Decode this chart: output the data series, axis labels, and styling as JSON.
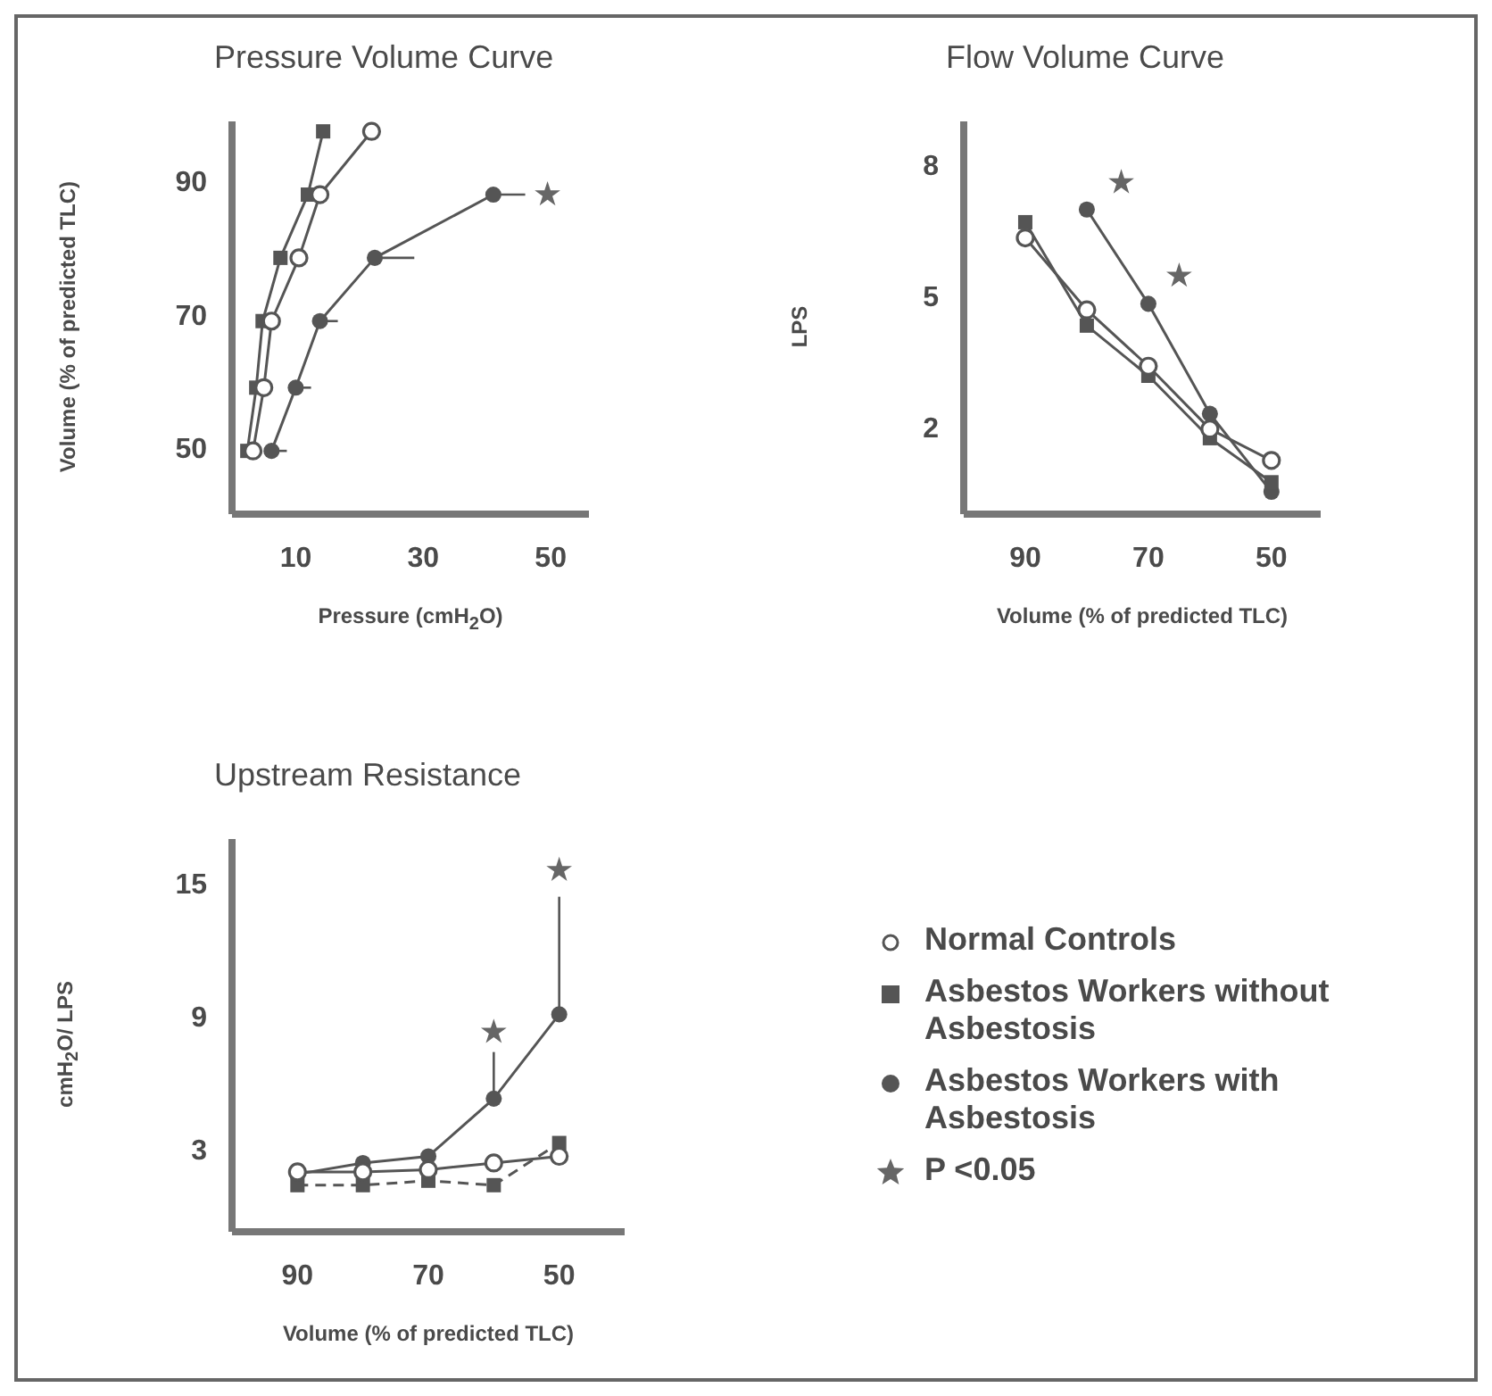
{
  "chart_data": [
    {
      "type": "line",
      "title": "Pressure Volume Curve",
      "xlabel": "Pressure (cmH$_{2}$O)",
      "ylabel": "Volume (% of predicted TLC)",
      "xlim": [
        0,
        56
      ],
      "ylim": [
        40,
        99
      ],
      "xticks": [
        10,
        30,
        50
      ],
      "yticks": [
        50,
        70,
        90
      ],
      "legend": false,
      "series": [
        {
          "type": "line",
          "color": "#555555",
          "marker": "circle",
          "line_style": "solid",
          "x": [
            21.9,
            13.8,
            10.5,
            6.2,
            5,
            3.3
          ],
          "values": [
            97.5,
            88,
            78.5,
            69,
            59,
            49.5
          ]
        },
        {
          "type": "line",
          "color": "#555555",
          "marker": "square",
          "line_style": "solid",
          "x": [
            14.3,
            11.9,
            7.6,
            4.8,
            3.8,
            2.4
          ],
          "values": [
            97.5,
            88,
            78.5,
            69,
            59,
            49.5
          ]
        },
        {
          "type": "line",
          "color": "#555555",
          "marker": "circle",
          "line_style": "solid",
          "x": [
            41,
            22.4,
            13.8,
            10,
            6.2
          ],
          "values": [
            88,
            78.5,
            69,
            59,
            49.5
          ],
          "xerrors": [
            [
              41,
              46
            ],
            [
              22.4,
              28.6
            ],
            [
              13.8,
              16.6
            ],
            [
              10,
              12.4
            ],
            [
              6.2,
              8.6
            ]
          ]
        },
        {
          "type": "scatter",
          "color": "#666666",
          "marker": "star",
          "x": [
            49.5
          ],
          "values": [
            88
          ]
        }
      ]
    },
    {
      "type": "line",
      "title": "Flow Volume Curve",
      "xlabel": "Volume (% of predicted TLC)",
      "ylabel": "LPS",
      "xlim": [
        100,
        42
      ],
      "ylim": [
        0,
        9
      ],
      "xticks": [
        90,
        70,
        50
      ],
      "yticks": [
        2,
        5,
        8
      ],
      "legend": false,
      "series": [
        {
          "type": "line",
          "color": "#555555",
          "marker": "circle",
          "line_style": "solid",
          "x": [
            90,
            80,
            70,
            60,
            50
          ],
          "values": [
            6.33,
            4.68,
            3.39,
            1.95,
            1.23
          ]
        },
        {
          "type": "line",
          "color": "#555555",
          "marker": "square",
          "line_style": "solid",
          "x": [
            90,
            80,
            70,
            60,
            50
          ],
          "values": [
            6.69,
            4.32,
            3.17,
            1.74,
            0.73
          ]
        },
        {
          "type": "line",
          "color": "#555555",
          "marker": "circle",
          "line_style": "solid",
          "x": [
            80,
            70,
            60,
            50
          ],
          "values": [
            6.98,
            4.82,
            2.3,
            0.51
          ]
        },
        {
          "type": "scatter",
          "color": "#666666",
          "marker": "star",
          "x": [
            74.4,
            65
          ],
          "values": [
            7.6,
            5.46
          ]
        }
      ]
    },
    {
      "type": "line",
      "title": "Upstream Resistance",
      "xlabel": "Volume (% of predicted TLC)",
      "ylabel": "cmH$_{2}$O/ LPS",
      "xlim": [
        100,
        40
      ],
      "ylim": [
        -0.7,
        17
      ],
      "xticks": [
        90,
        70,
        50
      ],
      "yticks": [
        3,
        9,
        15
      ],
      "legend": "right",
      "series": [
        {
          "name": "Normal Controls",
          "type": "line",
          "color": "#555555",
          "marker": "circle",
          "line_style": "solid",
          "x": [
            90,
            80,
            70,
            60,
            50
          ],
          "values": [
            2.0,
            2.0,
            2.1,
            2.4,
            2.7
          ]
        },
        {
          "name": "Asbestos Workers without Asbestosis",
          "type": "line",
          "color": "#555555",
          "marker": "square",
          "line_style": "dashed",
          "x": [
            90,
            80,
            70,
            60,
            50
          ],
          "values": [
            1.4,
            1.4,
            1.6,
            1.4,
            3.3
          ]
        },
        {
          "name": "Asbestos Workers with Asbestosis",
          "type": "line",
          "color": "#555555",
          "marker": "circle",
          "line_style": "solid",
          "x": [
            90,
            80,
            70,
            60,
            50
          ],
          "values": [
            1.9,
            2.4,
            2.7,
            5.3,
            9.1
          ],
          "errors": [
            null,
            null,
            null,
            [
              5.3,
              7.4
            ],
            [
              9.1,
              14.4
            ]
          ]
        },
        {
          "name": "P <0.05",
          "type": "scatter",
          "color": "#666666",
          "marker": "star",
          "x": [
            60,
            50
          ],
          "values": [
            8.3,
            15.6
          ]
        }
      ]
    }
  ]
}
